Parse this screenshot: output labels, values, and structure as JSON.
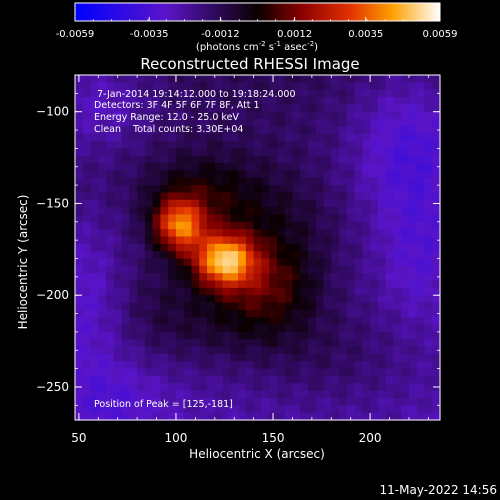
{
  "chart_data": {
    "type": "heatmap",
    "title": "Reconstructed RHESSI Image",
    "xlabel": "Heliocentric X (arcsec)",
    "ylabel": "Heliocentric Y (arcsec)",
    "xlim": [
      48,
      236
    ],
    "ylim": [
      -268,
      -80
    ],
    "x_ticks": [
      50,
      100,
      150,
      200
    ],
    "y_ticks": [
      -100,
      -150,
      -200,
      -250
    ],
    "colorbar": {
      "range": [
        -0.0059,
        0.0059
      ],
      "ticks": [
        "-0.0059",
        "-0.0035",
        "-0.0012",
        "0.0012",
        "0.0035",
        "0.0059"
      ],
      "unit_label": "(photons cm^-2 s^-1 asec^-2)",
      "unit_parts": [
        "(photons cm",
        "-2",
        " s",
        "-1",
        " asec",
        "-2",
        ")"
      ],
      "stops": [
        {
          "v": 0.0,
          "color": "#0000ff"
        },
        {
          "v": 0.25,
          "color": "#5a14c8"
        },
        {
          "v": 0.5,
          "color": "#0a0000"
        },
        {
          "v": 0.62,
          "color": "#8a0000"
        },
        {
          "v": 0.75,
          "color": "#e03000"
        },
        {
          "v": 0.87,
          "color": "#ffa000"
        },
        {
          "v": 1.0,
          "color": "#ffffff"
        }
      ]
    },
    "annotations": [
      "7-Jan-2014 19:14:12.000 to 19:18:24.000",
      "Detectors: 3F 4F 5F 6F 7F 8F, Att 1",
      "Energy Range: 12.0 - 25.0 keV",
      "Clean    Total counts: 3.30E+04"
    ],
    "peak_label": "Position of Peak = [125,-181]",
    "peak": [
      125,
      -181
    ],
    "sources": [
      {
        "x": 125,
        "y": -181,
        "amp": 0.0059,
        "sx": 11,
        "sy": 10
      },
      {
        "x": 102,
        "y": -162,
        "amp": 0.0048,
        "sx": 9,
        "sy": 10
      },
      {
        "x": 148,
        "y": -195,
        "amp": 0.0018,
        "sx": 18,
        "sy": 16
      },
      {
        "x": 112,
        "y": -145,
        "amp": 0.0016,
        "sx": 22,
        "sy": 16
      },
      {
        "x": 150,
        "y": -165,
        "amp": 0.0012,
        "sx": 25,
        "sy": 22
      },
      {
        "x": 130,
        "y": -215,
        "amp": 0.0012,
        "sx": 28,
        "sy": 18
      },
      {
        "x": 180,
        "y": -235,
        "amp": 0.0008,
        "sx": 30,
        "sy": 20
      },
      {
        "x": 90,
        "y": -205,
        "amp": 0.0008,
        "sx": 18,
        "sy": 25
      }
    ],
    "negative_regions": [
      {
        "x": 60,
        "y": -95,
        "amp": -0.0014,
        "sx": 20,
        "sy": 18
      },
      {
        "x": 220,
        "y": -120,
        "amp": -0.0018,
        "sx": 22,
        "sy": 30
      },
      {
        "x": 225,
        "y": -180,
        "amp": -0.001,
        "sx": 15,
        "sy": 25
      },
      {
        "x": 55,
        "y": -200,
        "amp": -0.001,
        "sx": 14,
        "sy": 30
      },
      {
        "x": 70,
        "y": -255,
        "amp": -0.0008,
        "sx": 20,
        "sy": 15
      }
    ]
  },
  "footer": {
    "timestamp": "11-May-2022 14:56"
  }
}
